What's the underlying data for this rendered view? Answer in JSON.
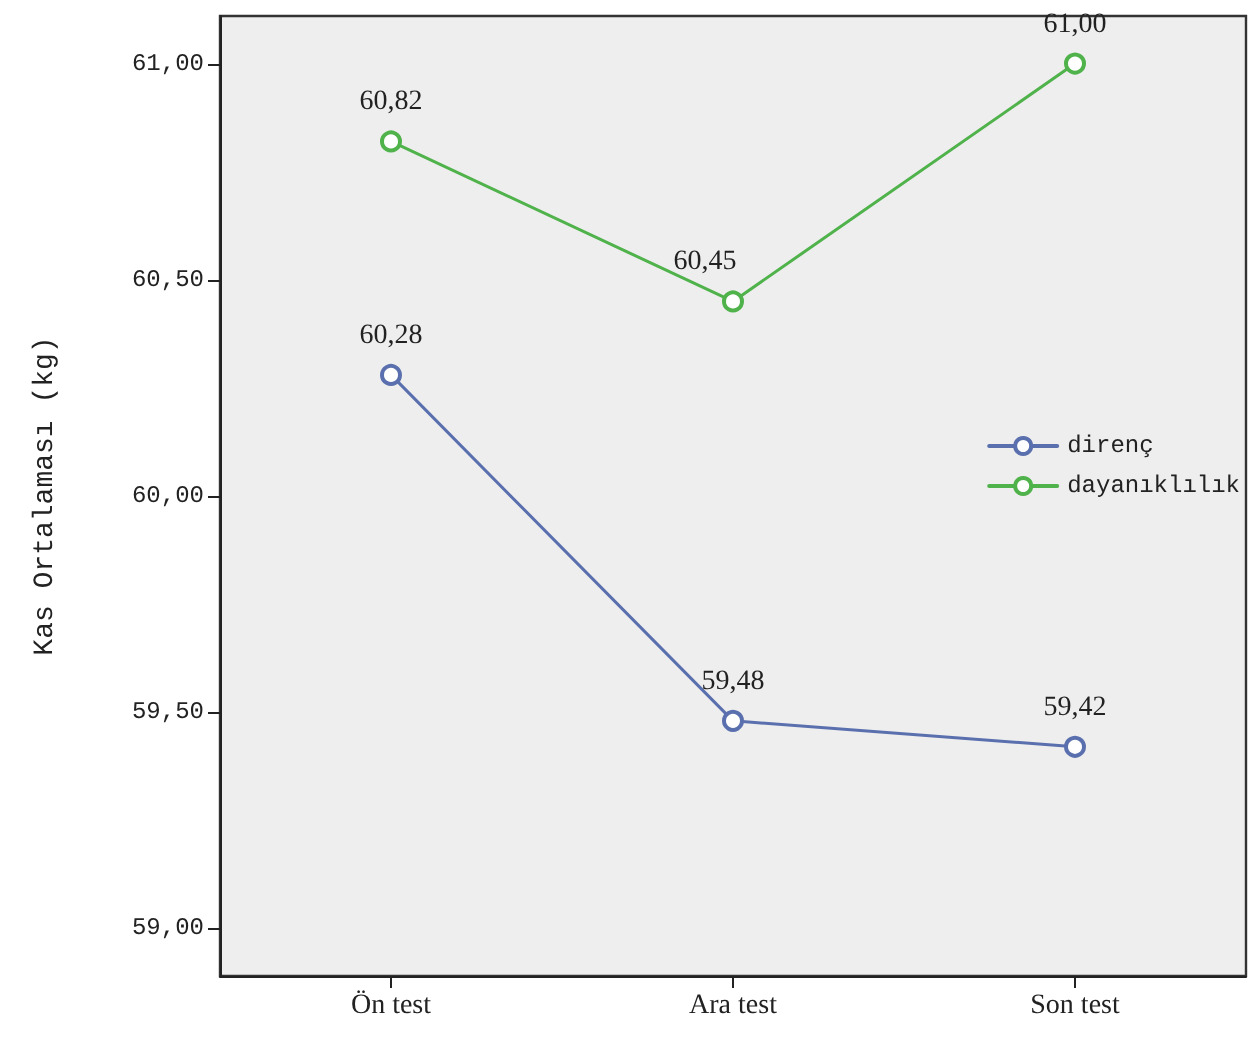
{
  "chart_data": {
    "type": "line",
    "ylabel": "Kas Ortalaması (kg)",
    "categories": [
      "Ön test",
      "Ara test",
      "Son test"
    ],
    "series": [
      {
        "name": "direnç",
        "color": "#5a6fae",
        "values": [
          60.28,
          59.48,
          59.42
        ],
        "value_labels": [
          "60,28",
          "59,48",
          "59,42"
        ]
      },
      {
        "name": "dayanıklılık",
        "color": "#4fb24a",
        "values": [
          60.82,
          60.45,
          61.0
        ],
        "value_labels": [
          "60,82",
          "60,45",
          "61,00"
        ]
      }
    ],
    "ylim": [
      58.89,
      61.11
    ],
    "yticks": [
      {
        "value": 59,
        "label": "59,00"
      },
      {
        "value": 59.5,
        "label": "59,50"
      },
      {
        "value": 60,
        "label": "60,00"
      },
      {
        "value": 60.5,
        "label": "60,50"
      },
      {
        "value": 61,
        "label": "61,00"
      }
    ],
    "grid": false,
    "legend": "right",
    "marker": "circle",
    "line_style": "solid"
  }
}
